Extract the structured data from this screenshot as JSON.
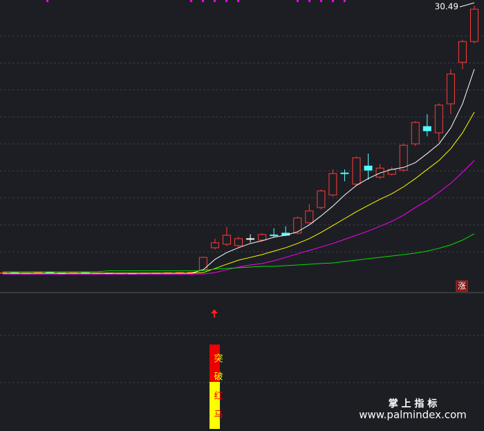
{
  "chart_data": {
    "type": "candlestick",
    "open": [
      7.8,
      7.84,
      7.8,
      7.82,
      7.86,
      7.82,
      7.8,
      7.84,
      7.78,
      7.8,
      7.76,
      7.78,
      7.76,
      7.8,
      7.82,
      7.84,
      7.86,
      8.09,
      9.96,
      10.26,
      10.14,
      10.73,
      10.61,
      11.04,
      11.2,
      11.2,
      12.08,
      13.37,
      14.43,
      16.3,
      15.36,
      16.89,
      15.95,
      16.19,
      16.54,
      18.77,
      20.24,
      19.71,
      22.17,
      25.69,
      27.45
    ],
    "high": [
      7.86,
      7.86,
      7.85,
      7.9,
      7.88,
      7.84,
      7.86,
      7.85,
      7.82,
      7.82,
      7.8,
      7.8,
      7.82,
      7.86,
      7.88,
      7.9,
      7.9,
      9.2,
      10.73,
      11.73,
      10.9,
      11.1,
      11.2,
      11.61,
      11.78,
      12.6,
      13.66,
      14.9,
      16.6,
      16.6,
      17.7,
      17.95,
      17.07,
      16.8,
      18.8,
      20.7,
      21.29,
      22.2,
      25.11,
      27.6,
      30.49
    ],
    "low": [
      7.78,
      7.79,
      7.78,
      7.8,
      7.8,
      7.76,
      7.78,
      7.76,
      7.74,
      7.74,
      7.74,
      7.74,
      7.74,
      7.78,
      7.8,
      7.82,
      7.84,
      8.0,
      9.8,
      10.1,
      10.0,
      10.4,
      10.5,
      10.85,
      10.95,
      11.1,
      12.0,
      13.2,
      14.3,
      15.6,
      15.2,
      15.72,
      15.8,
      16.1,
      16.4,
      18.6,
      19.41,
      18.94,
      21.3,
      25.11,
      27.3
    ],
    "close": [
      7.84,
      7.8,
      7.82,
      7.86,
      7.82,
      7.8,
      7.84,
      7.78,
      7.8,
      7.76,
      7.78,
      7.76,
      7.8,
      7.82,
      7.84,
      7.86,
      7.88,
      9.14,
      10.38,
      11.02,
      10.73,
      10.73,
      11.08,
      11.0,
      11.02,
      12.49,
      13.08,
      14.78,
      16.25,
      16.28,
      17.59,
      16.54,
      16.71,
      16.6,
      18.65,
      20.59,
      19.88,
      22.06,
      24.7,
      27.45,
      30.2
    ],
    "up_color": "#ff3c3c",
    "down_color": "#54ffff",
    "flat_color": "#ffffff",
    "series": [
      {
        "color": "#ffffff",
        "values": [
          7.8,
          7.8,
          7.8,
          7.8,
          7.8,
          7.8,
          7.8,
          7.8,
          7.8,
          7.8,
          7.8,
          7.8,
          7.8,
          7.8,
          7.8,
          7.8,
          7.8,
          8.09,
          8.97,
          9.55,
          9.96,
          10.32,
          10.55,
          10.85,
          11.02,
          11.31,
          11.9,
          12.66,
          13.49,
          14.43,
          15.25,
          15.83,
          16.3,
          16.6,
          16.77,
          17.18,
          17.95,
          18.77,
          20.12,
          22.17,
          25.11
        ]
      },
      {
        "color": "#ffff00",
        "values": [
          7.8,
          7.8,
          7.8,
          7.8,
          7.8,
          7.8,
          7.8,
          7.8,
          7.8,
          7.8,
          7.8,
          7.8,
          7.8,
          7.8,
          7.8,
          7.8,
          7.8,
          7.85,
          8.2,
          8.56,
          8.91,
          9.14,
          9.38,
          9.67,
          9.96,
          10.32,
          10.73,
          11.26,
          11.84,
          12.43,
          13.02,
          13.55,
          14.07,
          14.54,
          15.13,
          15.83,
          16.6,
          17.36,
          18.36,
          19.71,
          21.47
        ]
      },
      {
        "color": "#ff00ff",
        "values": [
          7.72,
          7.72,
          7.72,
          7.72,
          7.72,
          7.72,
          7.72,
          7.72,
          7.72,
          7.72,
          7.72,
          7.72,
          7.72,
          7.72,
          7.72,
          7.72,
          7.72,
          7.73,
          7.85,
          8.09,
          8.32,
          8.5,
          8.62,
          8.85,
          9.14,
          9.44,
          9.73,
          10.02,
          10.32,
          10.67,
          11.02,
          11.37,
          11.78,
          12.2,
          12.72,
          13.37,
          13.96,
          14.66,
          15.42,
          16.36,
          17.36
        ]
      },
      {
        "color": "#00e000",
        "values": [
          7.92,
          7.92,
          7.92,
          7.92,
          7.92,
          7.92,
          7.92,
          7.92,
          7.92,
          8.0,
          8.0,
          8.0,
          8.0,
          8.0,
          8.0,
          8.0,
          8.0,
          8.03,
          8.15,
          8.2,
          8.26,
          8.32,
          8.38,
          8.38,
          8.44,
          8.5,
          8.56,
          8.62,
          8.67,
          8.79,
          8.91,
          9.03,
          9.14,
          9.26,
          9.38,
          9.5,
          9.67,
          9.91,
          10.2,
          10.61,
          11.14
        ]
      }
    ],
    "ylim": [
      7.5,
      30.8
    ],
    "grid": true,
    "signal_text": [
      "突",
      "破",
      "红",
      "马"
    ],
    "badge": "涨",
    "watermark": {
      "title": "掌 上 指 标",
      "url": "www.palmindex.com"
    }
  }
}
